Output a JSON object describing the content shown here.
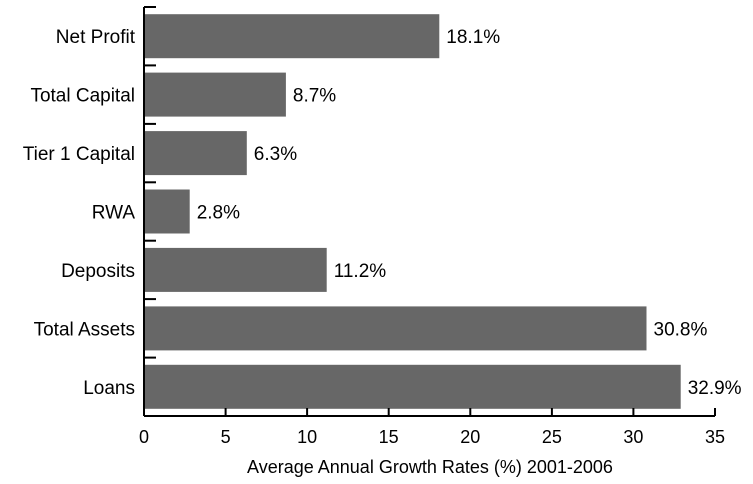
{
  "chart_data": {
    "type": "bar",
    "orientation": "horizontal",
    "categories": [
      "Net Profit",
      "Total Capital",
      "Tier 1 Capital",
      "RWA",
      "Deposits",
      "Total Assets",
      "Loans"
    ],
    "values": [
      18.1,
      8.7,
      6.3,
      2.8,
      11.2,
      30.8,
      32.9
    ],
    "data_labels": [
      "18.1%",
      "8.7%",
      "6.3%",
      "2.8%",
      "11.2%",
      "30.8%",
      "32.9%"
    ],
    "xlabel": "Average Annual Growth Rates (%) 2001-2006",
    "ylabel": "",
    "title": "",
    "xlim": [
      0,
      35
    ],
    "xticks": [
      0,
      5,
      10,
      15,
      20,
      25,
      30,
      35
    ],
    "grid": false,
    "legend": "none",
    "bar_color": "#676767"
  }
}
